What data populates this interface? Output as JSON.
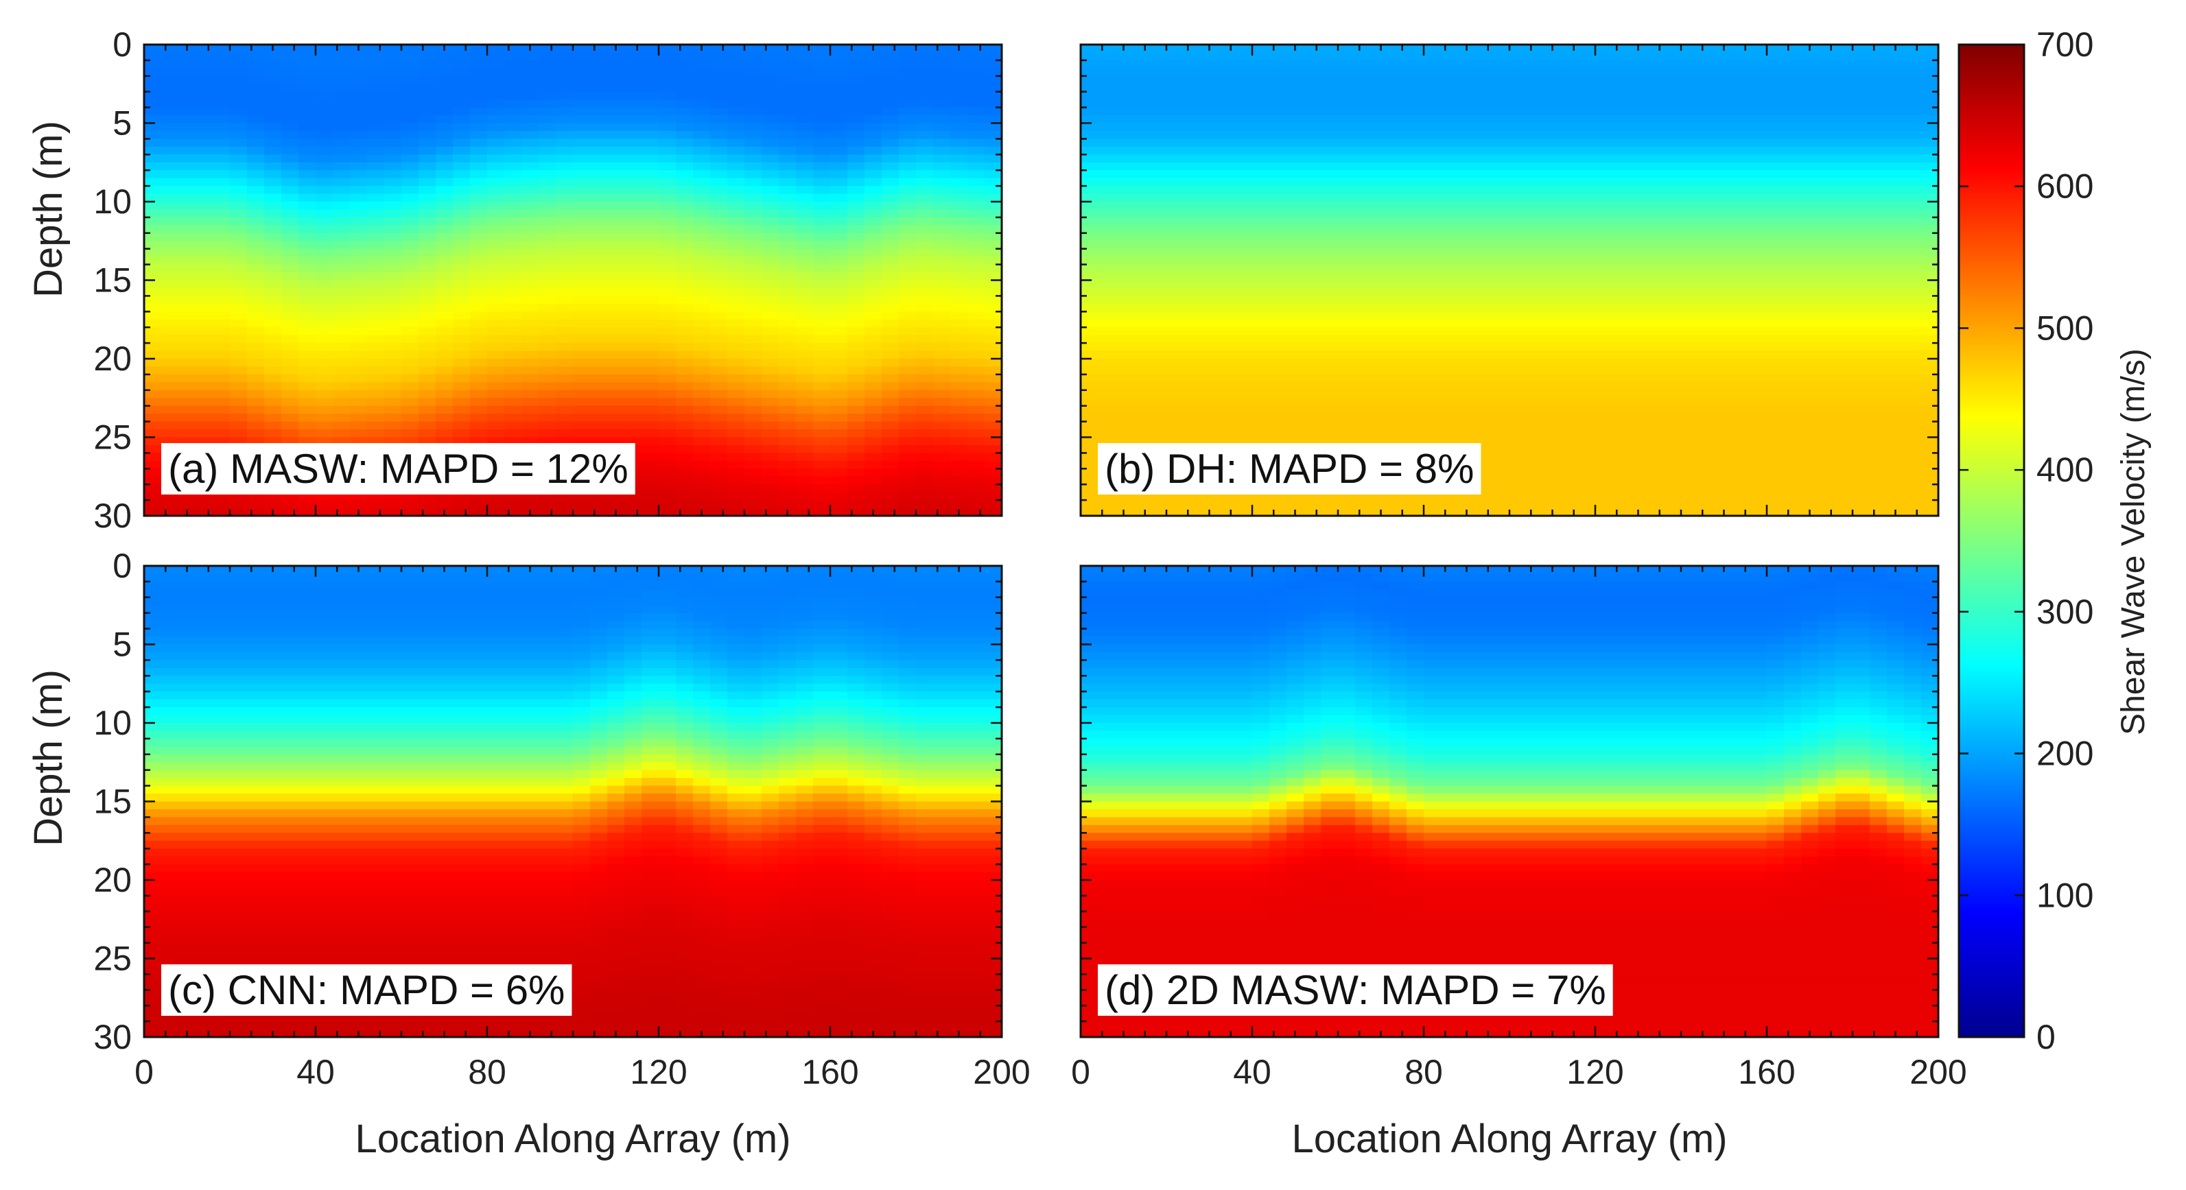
{
  "chart_data": {
    "type": "heatmap",
    "colormap": "jet",
    "colorbar": {
      "label": "Shear Wave Velocity (m/s)",
      "range": [
        0,
        700
      ],
      "ticks": [
        0,
        100,
        200,
        300,
        400,
        500,
        600,
        700
      ]
    },
    "xlabel": "Location Along Array (m)",
    "ylabel": "Depth (m)",
    "xlim": [
      0,
      200
    ],
    "ylim": [
      30,
      0
    ],
    "xticks": [
      0,
      40,
      80,
      120,
      160,
      200
    ],
    "yticks": [
      0,
      5,
      10,
      15,
      20,
      25,
      30
    ],
    "depth_grid": [
      0,
      2,
      4,
      6,
      8,
      10,
      12,
      14,
      16,
      18,
      20,
      22,
      24,
      26,
      28,
      30
    ],
    "location_grid": [
      0,
      20,
      40,
      60,
      80,
      100,
      120,
      140,
      160,
      180,
      200
    ],
    "panels": [
      {
        "label": "(a) MASW: MAPD = 12%",
        "velocity_profile": [
          170,
          165,
          165,
          185,
          235,
          290,
          350,
          395,
          425,
          450,
          470,
          510,
          560,
          600,
          625,
          640
        ],
        "interface_depth_offset": [
          0,
          0,
          1.5,
          1,
          -0.5,
          -1,
          -1,
          0,
          1,
          -0.5,
          0
        ]
      },
      {
        "label": "(b) DH: MAPD = 8%",
        "velocity_profile": [
          205,
          195,
          195,
          210,
          255,
          300,
          345,
          380,
          410,
          440,
          460,
          470,
          475,
          475,
          475,
          475
        ],
        "interface_depth_offset": [
          0,
          0,
          0,
          0,
          0,
          0,
          0,
          0,
          0,
          0,
          0
        ]
      },
      {
        "label": "(c) CNN: MAPD = 6%",
        "velocity_profile": [
          180,
          175,
          180,
          200,
          235,
          280,
          340,
          420,
          520,
          590,
          615,
          625,
          635,
          640,
          645,
          648
        ],
        "interface_depth_offset": [
          0,
          0,
          0,
          0,
          0,
          0,
          -1.5,
          0,
          -1,
          0,
          0
        ]
      },
      {
        "label": "(d) 2D MASW: MAPD = 7%",
        "velocity_profile": [
          175,
          165,
          170,
          190,
          215,
          245,
          280,
          340,
          470,
          590,
          620,
          625,
          628,
          628,
          628,
          628
        ],
        "interface_depth_offset": [
          0,
          0,
          0,
          -1.5,
          0,
          0,
          0,
          0,
          0,
          -1.5,
          0
        ]
      }
    ]
  }
}
